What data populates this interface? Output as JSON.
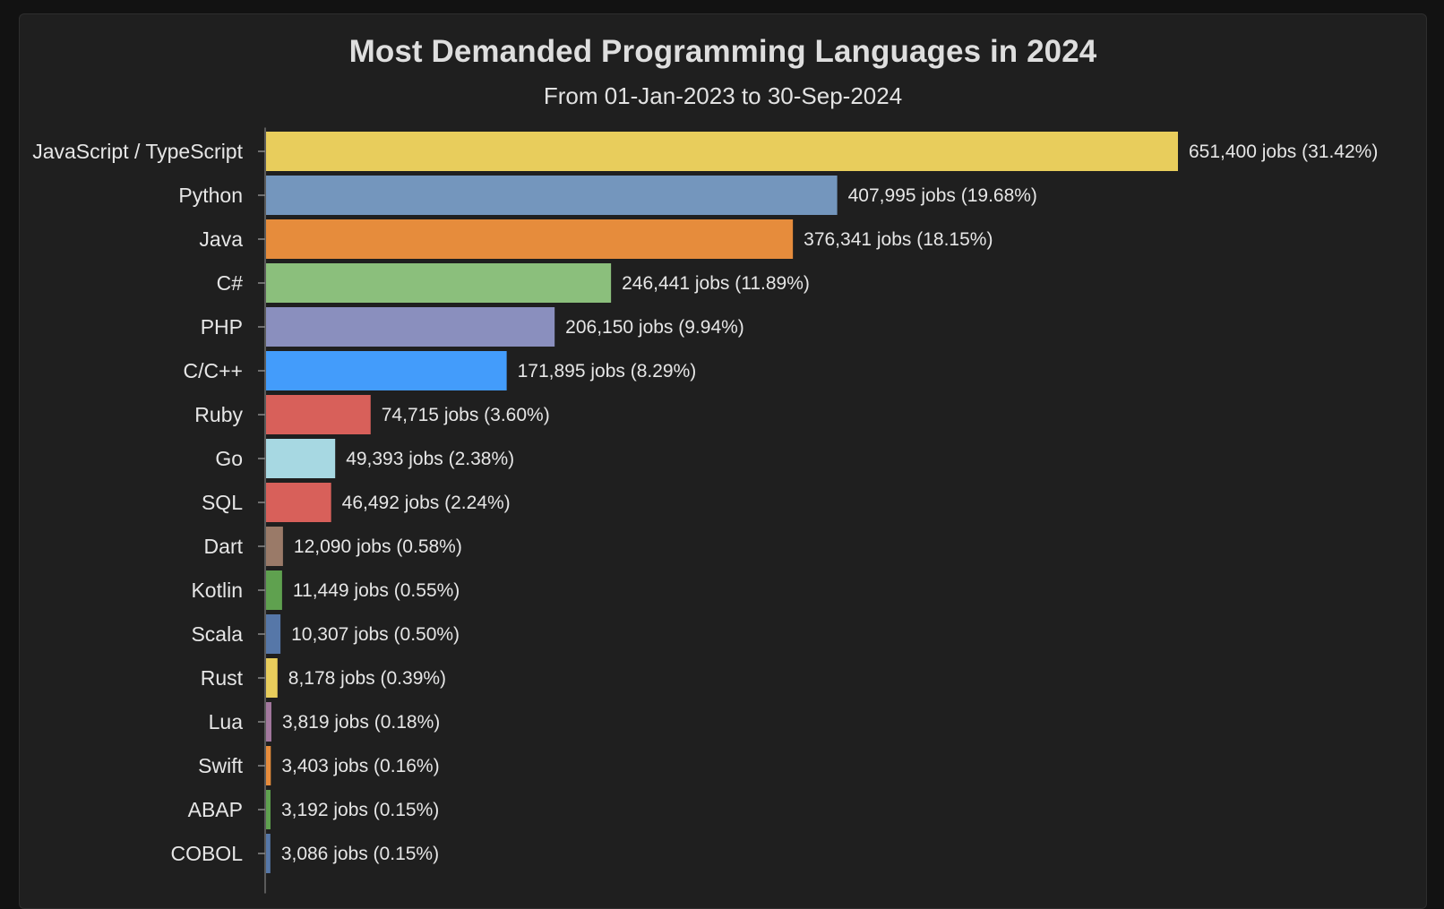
{
  "chart_data": {
    "type": "bar",
    "orientation": "horizontal",
    "title": "Most Demanded Programming Languages in 2024",
    "subtitle": "From 01-Jan-2023 to 30-Sep-2024",
    "xlim": [
      0,
      651400
    ],
    "bars": [
      {
        "category": "JavaScript / TypeScript",
        "value": 651400,
        "label": "651,400 jobs (31.42%)",
        "color": "#e8cd5c"
      },
      {
        "category": "Python",
        "value": 407995,
        "label": "407,995 jobs (19.68%)",
        "color": "#7496bd"
      },
      {
        "category": "Java",
        "value": 376341,
        "label": "376,341 jobs (18.15%)",
        "color": "#e68c3c"
      },
      {
        "category": "C#",
        "value": 246441,
        "label": "246,441 jobs (11.89%)",
        "color": "#8bbf7c"
      },
      {
        "category": "PHP",
        "value": 206150,
        "label": "206,150 jobs (9.94%)",
        "color": "#8a8fbe"
      },
      {
        "category": "C/C++",
        "value": 171895,
        "label": "171,895 jobs (8.29%)",
        "color": "#439cfb"
      },
      {
        "category": "Ruby",
        "value": 74715,
        "label": "74,715 jobs (3.60%)",
        "color": "#d8605a"
      },
      {
        "category": "Go",
        "value": 49393,
        "label": "49,393 jobs (2.38%)",
        "color": "#a7d8e2"
      },
      {
        "category": "SQL",
        "value": 46492,
        "label": "46,492 jobs (2.24%)",
        "color": "#d8605a"
      },
      {
        "category": "Dart",
        "value": 12090,
        "label": "12,090 jobs (0.58%)",
        "color": "#9a7a68"
      },
      {
        "category": "Kotlin",
        "value": 11449,
        "label": "11,449 jobs (0.55%)",
        "color": "#5fa14f"
      },
      {
        "category": "Scala",
        "value": 10307,
        "label": "10,307 jobs (0.50%)",
        "color": "#5677a8"
      },
      {
        "category": "Rust",
        "value": 8178,
        "label": "8,178 jobs (0.39%)",
        "color": "#e8cd5c"
      },
      {
        "category": "Lua",
        "value": 3819,
        "label": "3,819 jobs (0.18%)",
        "color": "#a3789e"
      },
      {
        "category": "Swift",
        "value": 3403,
        "label": "3,403 jobs (0.16%)",
        "color": "#e68c3c"
      },
      {
        "category": "ABAP",
        "value": 3192,
        "label": "3,192 jobs (0.15%)",
        "color": "#5fa14f"
      },
      {
        "category": "COBOL",
        "value": 3086,
        "label": "3,086 jobs (0.15%)",
        "color": "#5677a8"
      }
    ]
  }
}
